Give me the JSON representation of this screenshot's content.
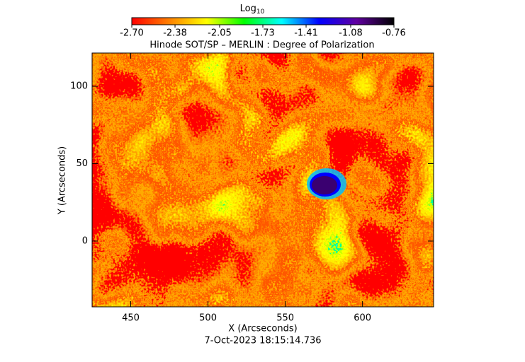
{
  "chart_data": {
    "type": "heatmap",
    "title": "Hinode SOT/SP – MERLIN : Degree of Polarization",
    "x_label": "X (Arcseconds)",
    "y_label": "Y (Arcseconds)",
    "footer": "7-Oct-2023 18:15:14.736",
    "xlim": [
      425,
      646
    ],
    "xticks": [
      450,
      500,
      550,
      600
    ],
    "ylim": [
      -42.5,
      121.5
    ],
    "yticks": [
      0,
      50,
      100
    ],
    "colorbar": {
      "label": "Log",
      "label_subscript": "10",
      "lim": [
        -2.7,
        -0.76
      ],
      "colormap": [
        "#ff0000",
        "#ff8000",
        "#ffff00",
        "#00ff00",
        "#00ffff",
        "#0000ff",
        "#6000a0",
        "#000000"
      ],
      "ticks": [
        {
          "value": -2.7,
          "label": "-2.70"
        },
        {
          "value": -2.38,
          "label": "-2.38"
        },
        {
          "value": -2.05,
          "label": "-2.05"
        },
        {
          "value": -1.73,
          "label": "-1.73"
        },
        {
          "value": -1.41,
          "label": "-1.41"
        },
        {
          "value": -1.08,
          "label": "-1.08"
        },
        {
          "value": -0.76,
          "label": "-0.76"
        }
      ]
    }
  }
}
